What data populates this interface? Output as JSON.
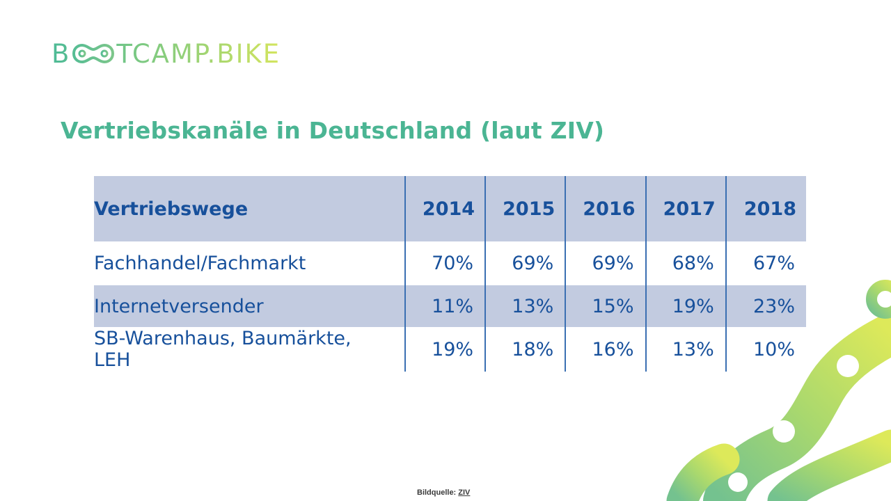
{
  "logo": {
    "part1": "B",
    "part2": "TCAMP.BIKE",
    "colors": [
      "#4dba96",
      "#8fcf7a",
      "#d4e55e"
    ]
  },
  "title": "Vertriebskanäle in Deutschland (laut ZIV)",
  "table": {
    "headers": [
      "Vertriebswege",
      "2014",
      "2015",
      "2016",
      "2017",
      "2018"
    ],
    "rows": [
      {
        "label": "Fachhandel/Fachmarkt",
        "values": [
          "70%",
          "69%",
          "69%",
          "68%",
          "67%"
        ]
      },
      {
        "label": "Internetversender",
        "values": [
          "11%",
          "13%",
          "15%",
          "19%",
          "23%"
        ]
      },
      {
        "label": "SB-Warenhaus, Baumärkte, LEH",
        "values": [
          "19%",
          "18%",
          "16%",
          "13%",
          "10%"
        ]
      }
    ],
    "header_bg": "#c2cbe0",
    "text_color": "#17509b"
  },
  "source": {
    "label": "Bildquelle: ",
    "link": "ZIV"
  },
  "decoration": {
    "name": "bike-chain-graphic",
    "colors": [
      "#7cc48a",
      "#d9e85a"
    ]
  }
}
